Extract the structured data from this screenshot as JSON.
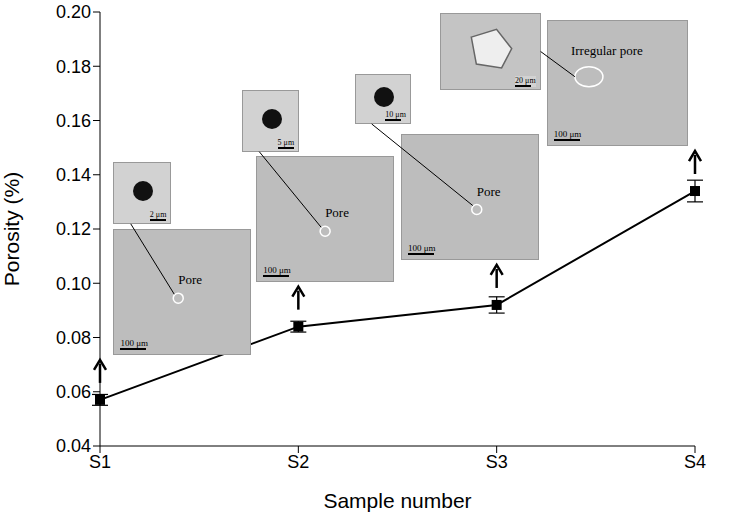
{
  "chart_data": {
    "type": "line",
    "x_label": "Sample number",
    "y_label": "Porosity (%)",
    "categories": [
      "S1",
      "S2",
      "S3",
      "S4"
    ],
    "values": [
      0.057,
      0.084,
      0.092,
      0.134
    ],
    "errors": [
      0.002,
      0.002,
      0.003,
      0.004
    ],
    "color": "#000000",
    "marker": "square",
    "line_style": "solid",
    "ylim": [
      0.04,
      0.2
    ],
    "yticks": [
      0.04,
      0.06,
      0.08,
      {
        "value": 0.1,
        "label": "0.10"
      },
      0.12,
      0.14,
      0.16,
      0.18,
      {
        "value": 0.2,
        "label": "0.20"
      }
    ],
    "grid": false,
    "insets": [
      {
        "category": "S1",
        "label": "Pore",
        "scale_bar": "100 μm",
        "zoom_scale_bar": "2 μm"
      },
      {
        "category": "S2",
        "label": "Pore",
        "scale_bar": "100 μm",
        "zoom_scale_bar": "5 μm"
      },
      {
        "category": "S3",
        "label": "Pore",
        "scale_bar": "100 μm",
        "zoom_scale_bar": "10 μm"
      },
      {
        "category": "S4",
        "label": "Irregular pore",
        "scale_bar": "100 μm",
        "zoom_scale_bar": "20 μm"
      }
    ]
  }
}
